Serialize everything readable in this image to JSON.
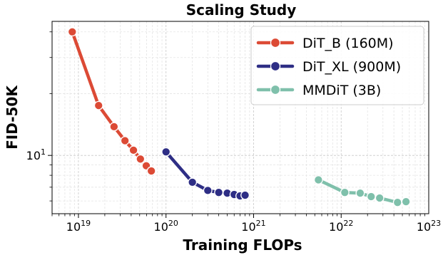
{
  "chart_data": {
    "type": "line",
    "title": "Scaling Study",
    "xlabel": "Training FLOPs",
    "ylabel": "FID-50K",
    "xscale": "log",
    "yscale": "log",
    "xlim": [
      5e+18,
      1e+23
    ],
    "ylim": [
      5.2,
      45
    ],
    "x_ticks": [
      {
        "value": 1e+19,
        "base": "10",
        "exp": "19"
      },
      {
        "value": 1e+20,
        "base": "10",
        "exp": "20"
      },
      {
        "value": 1e+21,
        "base": "10",
        "exp": "21"
      },
      {
        "value": 1e+22,
        "base": "10",
        "exp": "22"
      },
      {
        "value": 1e+23,
        "base": "10",
        "exp": "23"
      }
    ],
    "y_ticks": [
      {
        "value": 10,
        "base": "10",
        "exp": "1"
      }
    ],
    "grid": true,
    "legend_position": "top-right",
    "series": [
      {
        "name": "DiT_B (160M)",
        "color": "#dc4a35",
        "x": [
          8.5e+18,
          1.7e+19,
          2.55e+19,
          3.4e+19,
          4.25e+19,
          5.1e+19,
          5.95e+19,
          6.8e+19
        ],
        "y": [
          40,
          17.5,
          13.8,
          11.8,
          10.6,
          9.6,
          8.9,
          8.4
        ]
      },
      {
        "name": "DiT_XL (900M)",
        "color": "#2e2e85",
        "x": [
          1e+20,
          2e+20,
          3e+20,
          4e+20,
          5e+20,
          6e+20,
          7e+20,
          8e+20
        ],
        "y": [
          10.4,
          7.4,
          6.75,
          6.6,
          6.55,
          6.45,
          6.35,
          6.4
        ]
      },
      {
        "name": "MMDiT (3B)",
        "color": "#7fc0ab",
        "x": [
          5.5e+21,
          1.1e+22,
          1.65e+22,
          2.2e+22,
          2.75e+22,
          4.4e+22,
          5.5e+22
        ],
        "y": [
          7.6,
          6.6,
          6.55,
          6.3,
          6.2,
          5.9,
          5.95
        ]
      }
    ]
  }
}
